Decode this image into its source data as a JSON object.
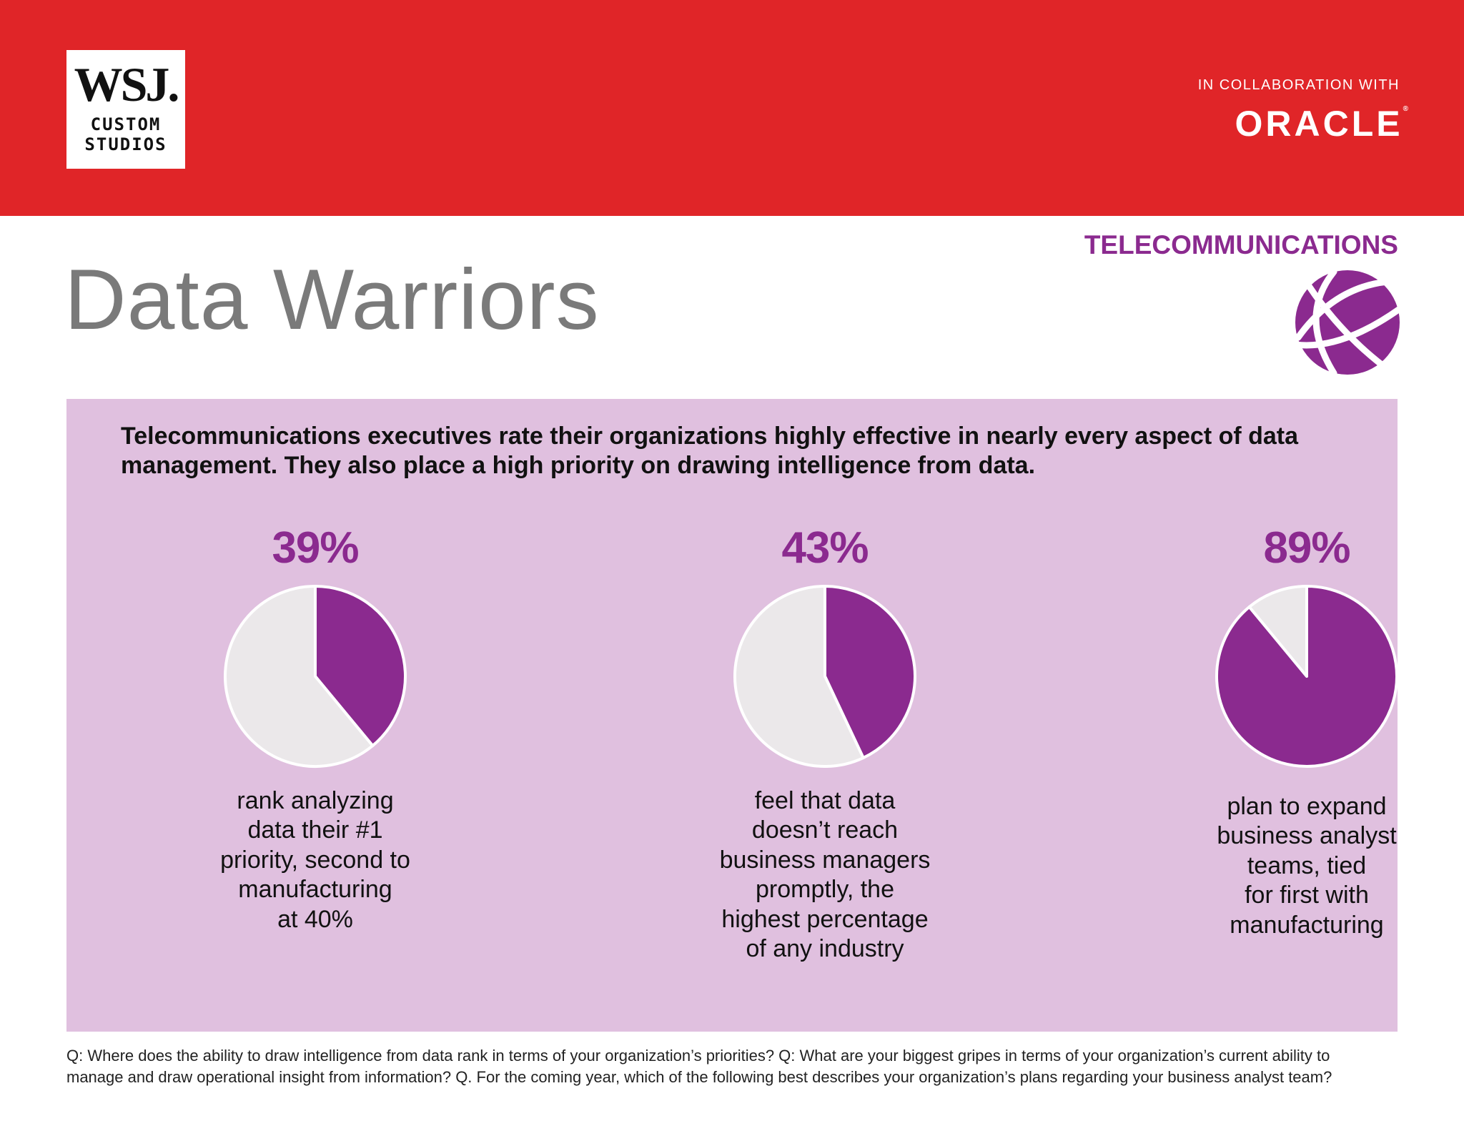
{
  "header": {
    "brand_word": "WSJ.",
    "brand_line1": "CUSTOM",
    "brand_line2": "STUDIOS",
    "collab_label": "IN COLLABORATION WITH",
    "partner": "ORACLE",
    "partner_mark": "®",
    "colors": {
      "header_bg": "#e02528",
      "accent": "#8b2a8f"
    }
  },
  "industry": {
    "label": "TELECOMMUNICATIONS",
    "icon": "globe-icon"
  },
  "title": "Data Warriors",
  "intro": "Telecommunications executives rate their organizations highly effective in nearly every aspect of data management. They also place a high priority on drawing intelligence from data.",
  "chart_data": [
    {
      "type": "pie",
      "title": "39%",
      "values": [
        39,
        61
      ],
      "description_lines": [
        "rank analyzing",
        "data their #1",
        "priority, second to",
        "manufacturing",
        "at 40%"
      ],
      "colors": [
        "#8b2a8f",
        "#ebe8ea"
      ]
    },
    {
      "type": "pie",
      "title": "43%",
      "values": [
        43,
        57
      ],
      "description_lines": [
        "feel that data",
        "doesn’t reach",
        "business managers",
        "promptly, the",
        "highest percentage",
        "of any industry"
      ],
      "colors": [
        "#8b2a8f",
        "#ebe8ea"
      ]
    },
    {
      "type": "pie",
      "title": "89%",
      "values": [
        89,
        11
      ],
      "description_lines": [
        "plan to expand",
        "business analyst",
        "teams, tied",
        "for first with",
        "manufacturing"
      ],
      "colors": [
        "#8b2a8f",
        "#ebe8ea"
      ]
    }
  ],
  "footer": {
    "line1": "Q: Where does the ability to draw intelligence from data rank in terms of your organization’s priorities? Q: What are your biggest gripes in terms of your organization’s current ability to",
    "line2": "manage and draw operational insight from information? Q. For the coming year, which of the following best describes your organization’s plans regarding your business analyst team?"
  }
}
